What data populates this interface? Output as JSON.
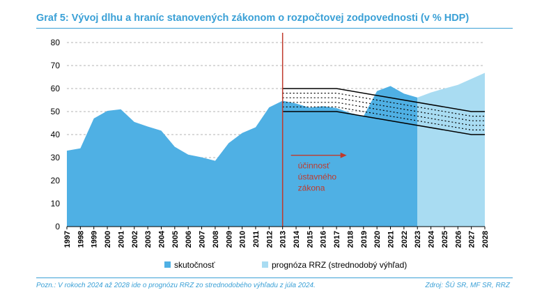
{
  "header": {
    "title": "Graf 5: Vývoj dlhu a hraníc stanovených zákonom o rozpočtovej zodpovednosti (v % HDP)"
  },
  "footer": {
    "note": "Pozn.: V rokoch 2024 až 2028 ide o prognózu RRZ zo strednodobého výhľadu z júla 2024.",
    "source": "Zdroj: ŠÚ SR, MF SR, RRZ"
  },
  "colors": {
    "actual": "#4fb0e4",
    "forecast": "#a9dcf2",
    "marker": "#c0392b",
    "limits": "#000000"
  },
  "chart_data": {
    "type": "area",
    "title": "Graf 5: Vývoj dlhu a hraníc stanovených zákonom o rozpočtovej zodpovednosti (v % HDP)",
    "xlabel": "",
    "ylabel": "",
    "ylim": [
      0,
      80
    ],
    "yticks": [
      0,
      10,
      20,
      30,
      40,
      50,
      60,
      70,
      80
    ],
    "grid": true,
    "legend_position": "bottom",
    "x": [
      "1997",
      "1998",
      "1999",
      "2000",
      "2001",
      "2002",
      "2003",
      "2004",
      "2005",
      "2006",
      "2007",
      "2008",
      "2009",
      "2010",
      "2011",
      "2012",
      "2013",
      "2014",
      "2015",
      "2016",
      "2017",
      "2018",
      "2019",
      "2020",
      "2021",
      "2022",
      "2023",
      "2024",
      "2025",
      "2026",
      "2027",
      "2028"
    ],
    "series": [
      {
        "name": "skutočnosť",
        "color": "#4fb0e4",
        "values": [
          33,
          34,
          47,
          50.3,
          51,
          45.5,
          43.5,
          41.7,
          34.7,
          31.3,
          30.1,
          28.6,
          36.3,
          40.7,
          43.2,
          51.8,
          54.7,
          53.5,
          51.7,
          52.3,
          51.5,
          49.4,
          48,
          58.9,
          61.1,
          57.8,
          56.1,
          null,
          null,
          null,
          null,
          null
        ]
      },
      {
        "name": "prognóza RRZ (strednodobý výhľad)",
        "color": "#a9dcf2",
        "values": [
          null,
          null,
          null,
          null,
          null,
          null,
          null,
          null,
          null,
          null,
          null,
          null,
          null,
          null,
          null,
          null,
          null,
          null,
          null,
          null,
          null,
          null,
          null,
          null,
          null,
          null,
          56.1,
          58.3,
          60,
          61.6,
          64.2,
          66.8
        ]
      }
    ],
    "limit_bands": {
      "x": [
        "2013",
        "2017",
        "2027",
        "2028"
      ],
      "solid_upper": [
        60,
        60,
        50,
        50
      ],
      "solid_lower": [
        50,
        50,
        40,
        40
      ],
      "dotted": [
        [
          58,
          58,
          48,
          48
        ],
        [
          56,
          56,
          46,
          46
        ],
        [
          54,
          54,
          44,
          44
        ],
        [
          52,
          52,
          42,
          42
        ]
      ]
    },
    "vertical_marker": {
      "x": "2013"
    },
    "annotation": {
      "lines": [
        "účinnosť",
        "ústavného",
        "zákona"
      ]
    },
    "legend": [
      "skutočnosť",
      "prognóza RRZ (strednodobý výhľad)"
    ]
  }
}
